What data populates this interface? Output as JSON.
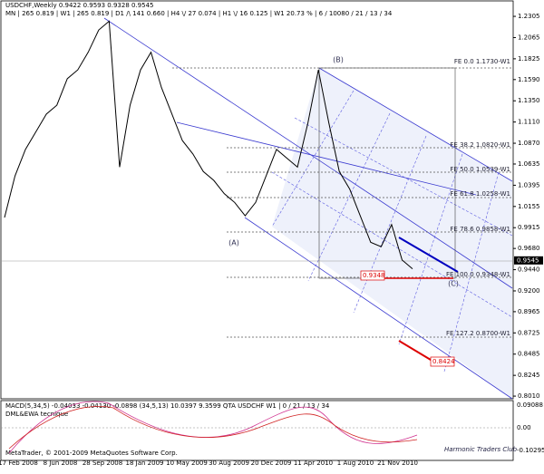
{
  "header": {
    "line1": "USDCHF,Weekly  0.9422 0.9593 0.9328 0.9545",
    "line2": "MN | 265  0.819 | W1 | 265  0.819 | D1 /\\ 141  0.660 | H4 \\/ 27  0.074 | H1 \\/ 16  0.125 | W1  20.73 % | 6 / 10080 / 21 / 13 / 34"
  },
  "chart_data": {
    "type": "line",
    "color": "#000000",
    "values": [
      1.003,
      1.05,
      1.08,
      1.1,
      1.12,
      1.13,
      1.16,
      1.17,
      1.19,
      1.215,
      1.225,
      1.06,
      1.13,
      1.17,
      1.19,
      1.15,
      1.12,
      1.09,
      1.075,
      1.055,
      1.045,
      1.03,
      1.02,
      1.005,
      1.02,
      1.05,
      1.08,
      1.07,
      1.06,
      1.11,
      1.17,
      1.11,
      1.055,
      1.035,
      1.005,
      0.975,
      0.97,
      0.995,
      0.955,
      0.945
    ],
    "ylim": [
      0.798,
      1.249
    ],
    "yticks": [
      1.2305,
      1.2065,
      1.1825,
      {
        "value": 1.159,
        "label": "1.1590"
      },
      {
        "value": 1.135,
        "label": "1.1350"
      },
      {
        "value": 1.111,
        "label": "1.1110"
      },
      {
        "value": 1.087,
        "label": "1.0870"
      },
      1.0635,
      1.0395,
      1.0155,
      0.9915,
      {
        "value": 0.968,
        "label": "0.9680"
      },
      {
        "value": 0.944,
        "label": "0.9440"
      },
      {
        "value": 0.92,
        "label": "0.9200"
      },
      0.8965,
      0.8725,
      0.8485,
      0.8245,
      {
        "value": 0.801,
        "label": "0.8010"
      }
    ],
    "current_price": 0.9545,
    "x_labels": [
      "17 Feb 2008",
      "8 Jun 2008",
      "28 Sep 2008",
      "18 Jan 2009",
      "10 May 2009",
      "30 Aug 2009",
      "20 Dec 2009",
      "11 Apr 2010",
      "1 Aug 2010",
      "21 Nov 2010"
    ],
    "fib_labels": [
      "FE 0.0  1.1730-W1",
      "FE 38.2  1.0820-W1",
      "FE 50.0  1.0539-W1",
      "FE 61.8  1.0258-W1",
      "FE 78.6  0.9858-W1",
      "FE 100.0  0.9348-W1",
      "FE 127.2  0.8700-W1"
    ],
    "wave_labels": [
      "(A)",
      "(B)",
      "(C)"
    ],
    "price_boxes": [
      "0.9348",
      "0.8424"
    ]
  },
  "indicator": {
    "title": "MACD(5,34,5) -0.04033 -0.04130 -0.0898 (34,5,13) 10.0397 9.3599  QTA USDCHF W1 | 0 / 21 / 13 / 34",
    "subtitle": "DML&EWA tecnique",
    "ticks": [
      "0.09088",
      "0.00",
      "-0.10295"
    ]
  },
  "footer": {
    "copyright": "MetaTrader, © 2001-2009 MetaQuotes Software Corp.",
    "signature": "Harmonic Traders Club"
  }
}
